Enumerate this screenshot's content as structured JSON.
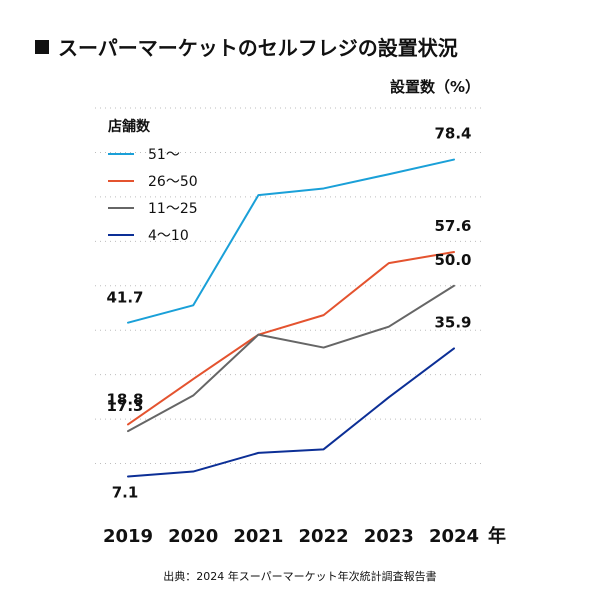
{
  "title": "スーパーマーケットのセルフレジの設置状況",
  "unit_label": "設置数（%）",
  "x_unit_label": "年",
  "source": "出典：2024 年スーパーマーケット年次統計調査報告書",
  "legend_title": "店舗数",
  "chart_data": {
    "type": "line",
    "x": [
      "2019",
      "2020",
      "2021",
      "2022",
      "2023",
      "2024"
    ],
    "ylabel": "設置数（%）",
    "xlabel": "年",
    "ylim": [
      0,
      90
    ],
    "grid": true,
    "legend_placement": "top-left",
    "series": [
      {
        "name": "51〜",
        "color": "#1aa0d8",
        "values": [
          41.7,
          45.6,
          70.4,
          71.9,
          75.1,
          78.4
        ],
        "labels": [
          "41.7",
          "",
          "",
          "",
          "",
          "78.4"
        ]
      },
      {
        "name": "26〜50",
        "color": "#e4532f",
        "values": [
          18.8,
          29.0,
          39.0,
          43.4,
          55.1,
          57.6
        ],
        "labels": [
          "18.8",
          "",
          "",
          "",
          "",
          "57.6"
        ]
      },
      {
        "name": "11〜25",
        "color": "#666666",
        "values": [
          17.3,
          25.3,
          39.0,
          36.1,
          40.8,
          50.0
        ],
        "labels": [
          "17.3",
          "",
          "",
          "",
          "",
          "50.0"
        ]
      },
      {
        "name": "4〜10",
        "color": "#0c2f96",
        "values": [
          7.1,
          8.2,
          12.4,
          13.2,
          24.9,
          35.9
        ],
        "labels": [
          "7.1",
          "",
          "",
          "",
          "",
          "35.9"
        ]
      }
    ]
  }
}
